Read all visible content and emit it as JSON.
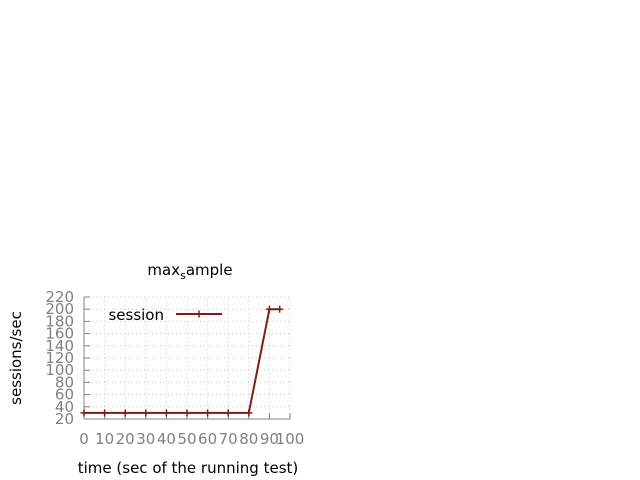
{
  "chart_data": {
    "type": "line",
    "title": "max",
    "title_subscript": "s",
    "title_rest": "ample",
    "xlabel": "time (sec of the running test)",
    "ylabel": "sessions/sec",
    "xlim": [
      0,
      100
    ],
    "ylim": [
      20,
      220
    ],
    "x_ticks": [
      0,
      10,
      20,
      30,
      40,
      50,
      60,
      70,
      80,
      90,
      100
    ],
    "x_tick_labels": [
      "0",
      "10",
      "20",
      "30",
      "40",
      "50",
      "60",
      "70",
      "80",
      "90",
      "100"
    ],
    "y_ticks": [
      20,
      40,
      60,
      80,
      100,
      120,
      140,
      160,
      180,
      200,
      220
    ],
    "grid": true,
    "legend_position": "top-left",
    "series": [
      {
        "name": "session",
        "color": "#7f1c15",
        "x": [
          0,
          10,
          20,
          30,
          40,
          50,
          60,
          70,
          80,
          90,
          95
        ],
        "y": [
          30,
          30,
          30,
          30,
          30,
          30,
          30,
          30,
          30,
          200,
          200
        ]
      }
    ]
  }
}
